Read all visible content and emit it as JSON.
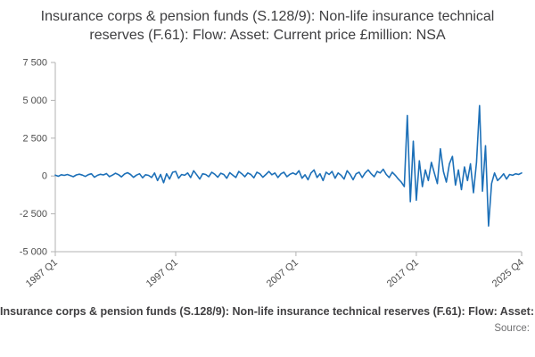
{
  "footer": {
    "text": "Insurance corps & pension funds (S.128/9): Non-life insurance technical reserves (F.61): Flow: Asset: Current price £million: NSA",
    "source_label": "Source:"
  },
  "chart_data": {
    "type": "line",
    "title": "Insurance corps & pension funds (S.128/9): Non-life insurance technical reserves (F.61): Flow: Asset: Current price £million: NSA",
    "unit": "£million",
    "frequency": "quarterly",
    "x_start": "1987 Q1",
    "x_end": "2025 Q4",
    "line_color": "#1d70b8",
    "axis_color": "#b3b3b3",
    "grid": false,
    "legend": false,
    "ylim": [
      -5000,
      7500
    ],
    "yticks": [
      {
        "value": 7500,
        "label": "7 500"
      },
      {
        "value": 5000,
        "label": "5 000"
      },
      {
        "value": 2500,
        "label": "2 500"
      },
      {
        "value": 0,
        "label": "0"
      },
      {
        "value": -2500,
        "label": "-2 500"
      },
      {
        "value": -5000,
        "label": "-5 000"
      }
    ],
    "xticks": [
      {
        "index": 0,
        "label": "1987 Q1"
      },
      {
        "index": 40,
        "label": "1997 Q1"
      },
      {
        "index": 80,
        "label": "2007 Q1"
      },
      {
        "index": 120,
        "label": "2017 Q1"
      },
      {
        "index": 155,
        "label": "2025 Q4"
      }
    ],
    "values": [
      60,
      -20,
      80,
      40,
      100,
      30,
      -50,
      70,
      120,
      60,
      -30,
      90,
      150,
      -80,
      40,
      110,
      70,
      160,
      -40,
      60,
      180,
      90,
      -60,
      130,
      220,
      100,
      -90,
      60,
      150,
      -120,
      80,
      40,
      -100,
      200,
      -300,
      100,
      -450,
      150,
      -200,
      250,
      300,
      -150,
      100,
      50,
      200,
      -100,
      350,
      80,
      -200,
      150,
      100,
      -50,
      250,
      120,
      -80,
      180,
      100,
      -150,
      220,
      60,
      -100,
      300,
      150,
      -50,
      200,
      100,
      -120,
      250,
      150,
      -80,
      100,
      300,
      80,
      200,
      -100,
      150,
      250,
      -50,
      120,
      200,
      100,
      350,
      -150,
      80,
      -250,
      200,
      400,
      -100,
      150,
      -300,
      250,
      100,
      300,
      -150,
      200,
      50,
      -200,
      350,
      100,
      -250,
      150,
      250,
      -100,
      200,
      400,
      150,
      -50,
      300,
      200,
      450,
      100,
      -100,
      250,
      50,
      -200,
      -400,
      -700,
      4000,
      -1700,
      2300,
      -1600,
      1000,
      -700,
      400,
      -300,
      900,
      200,
      -500,
      1800,
      300,
      -400,
      800,
      1300,
      -600,
      400,
      -900,
      600,
      -300,
      800,
      -1100,
      900,
      4650,
      -1000,
      2000,
      -3300,
      -500,
      200,
      -300,
      -100,
      150,
      -200,
      100,
      50,
      150,
      100,
      200
    ]
  }
}
